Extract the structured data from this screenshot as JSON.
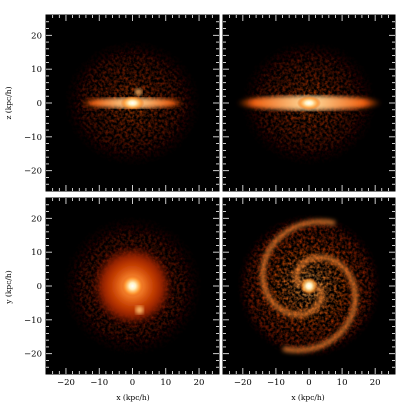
{
  "figure": {
    "axes": {
      "left_top_ylabel": "z (kpc/h)",
      "left_bottom_ylabel": "y (kpc/h)",
      "bottom_left_xlabel": "x (kpc/h)",
      "bottom_right_xlabel": "x (kpc/h)"
    },
    "ticks": {
      "y": [
        "20",
        "10",
        "0",
        "−10",
        "−20"
      ],
      "x": [
        "−20",
        "−10",
        "0",
        "10",
        "20"
      ]
    },
    "panels": [
      {
        "id": "top-left",
        "projection": "edge-on x–z",
        "feature": "thin bright disk, bulge and satellite"
      },
      {
        "id": "top-right",
        "projection": "edge-on x–z",
        "feature": "extended bright disk"
      },
      {
        "id": "bottom-left",
        "projection": "face-on x–y",
        "feature": "smooth disk with satellite"
      },
      {
        "id": "bottom-right",
        "projection": "face-on x–y",
        "feature": "spiral arms"
      }
    ],
    "colors": {
      "background": "#000000",
      "halo": "#7a1400",
      "disk": "#e04a00",
      "core": "#fff2c0"
    }
  },
  "chart_data": {
    "type": "heatmap",
    "axes_range": {
      "x": [
        -26,
        26
      ],
      "y": [
        -26,
        26
      ]
    },
    "tick_values": [
      -20,
      -10,
      0,
      10,
      20
    ]
  }
}
